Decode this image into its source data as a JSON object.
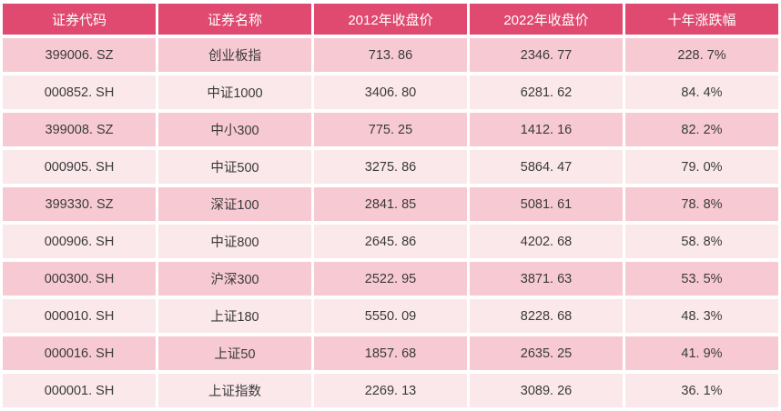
{
  "colors": {
    "header_bg": "#E04970",
    "row_dark_bg": "#F7CAD3",
    "row_light_bg": "#FBE8EB",
    "header_text": "#FFFFFF",
    "cell_text": "#3A3A3A",
    "gap": "#FFFFFF"
  },
  "table": {
    "columns": [
      {
        "label": "证券代码"
      },
      {
        "label": "证券名称"
      },
      {
        "label": "2012年收盘价"
      },
      {
        "label": "2022年收盘价"
      },
      {
        "label": "十年涨跌幅"
      }
    ],
    "rows": [
      {
        "code": "399006. SZ",
        "name": "创业板指",
        "p2012": "713. 86",
        "p2022": "2346. 77",
        "change": "228. 7%"
      },
      {
        "code": "000852. SH",
        "name": "中证1000",
        "p2012": "3406. 80",
        "p2022": "6281. 62",
        "change": "84. 4%"
      },
      {
        "code": "399008. SZ",
        "name": "中小300",
        "p2012": "775. 25",
        "p2022": "1412. 16",
        "change": "82. 2%"
      },
      {
        "code": "000905. SH",
        "name": "中证500",
        "p2012": "3275. 86",
        "p2022": "5864. 47",
        "change": "79. 0%"
      },
      {
        "code": "399330. SZ",
        "name": "深证100",
        "p2012": "2841. 85",
        "p2022": "5081. 61",
        "change": "78. 8%"
      },
      {
        "code": "000906. SH",
        "name": "中证800",
        "p2012": "2645. 86",
        "p2022": "4202. 68",
        "change": "58. 8%"
      },
      {
        "code": "000300. SH",
        "name": "沪深300",
        "p2012": "2522. 95",
        "p2022": "3871. 63",
        "change": "53. 5%"
      },
      {
        "code": "000010. SH",
        "name": "上证180",
        "p2012": "5550. 09",
        "p2022": "8228. 68",
        "change": "48. 3%"
      },
      {
        "code": "000016. SH",
        "name": "上证50",
        "p2012": "1857. 68",
        "p2022": "2635. 25",
        "change": "41. 9%"
      },
      {
        "code": "000001. SH",
        "name": "上证指数",
        "p2012": "2269. 13",
        "p2022": "3089. 26",
        "change": "36. 1%"
      }
    ]
  },
  "chart_data": {
    "type": "table",
    "title": "",
    "columns": [
      "证券代码",
      "证券名称",
      "2012年收盘价",
      "2022年收盘价",
      "十年涨跌幅"
    ],
    "rows": [
      [
        "399006.SZ",
        "创业板指",
        713.86,
        2346.77,
        "228.7%"
      ],
      [
        "000852.SH",
        "中证1000",
        3406.8,
        6281.62,
        "84.4%"
      ],
      [
        "399008.SZ",
        "中小300",
        775.25,
        1412.16,
        "82.2%"
      ],
      [
        "000905.SH",
        "中证500",
        3275.86,
        5864.47,
        "79.0%"
      ],
      [
        "399330.SZ",
        "深证100",
        2841.85,
        5081.61,
        "78.8%"
      ],
      [
        "000906.SH",
        "中证800",
        2645.86,
        4202.68,
        "58.8%"
      ],
      [
        "000300.SH",
        "沪深300",
        2522.95,
        3871.63,
        "53.5%"
      ],
      [
        "000010.SH",
        "上证180",
        5550.09,
        8228.68,
        "48.3%"
      ],
      [
        "000016.SH",
        "上证50",
        1857.68,
        2635.25,
        "41.9%"
      ],
      [
        "000001.SH",
        "上证指数",
        2269.13,
        3089.26,
        "36.1%"
      ]
    ]
  }
}
